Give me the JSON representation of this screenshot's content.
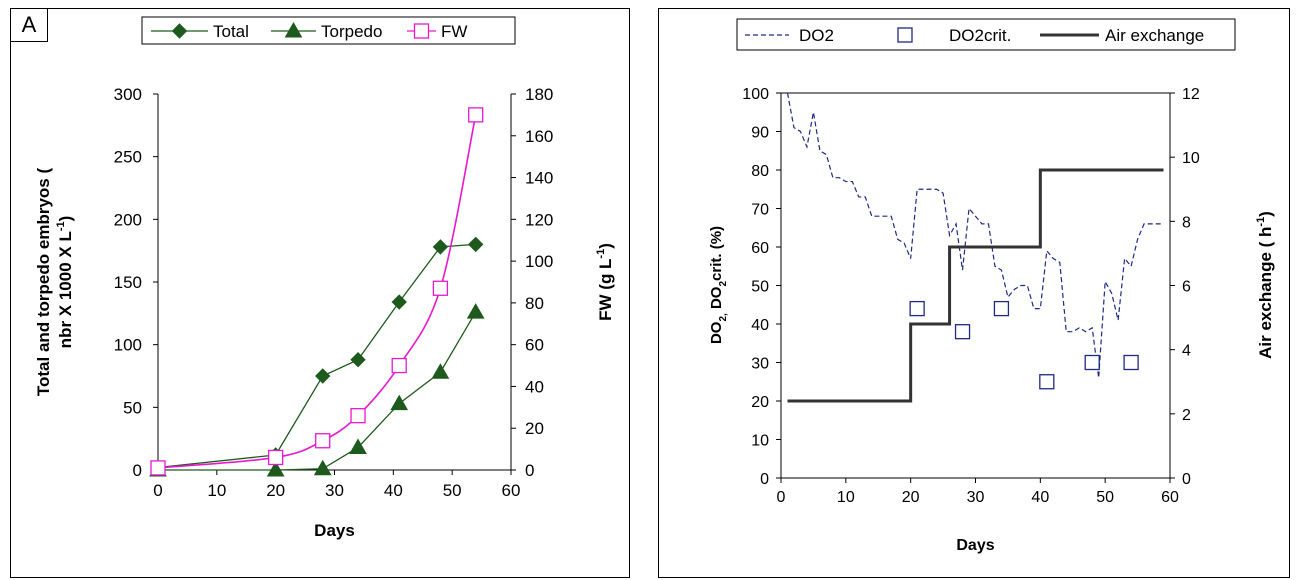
{
  "chart_data": [
    {
      "type": "line",
      "panel_label": "A",
      "xlabel": "Days",
      "ylabel_line1": "Total and torpedo embryos    (",
      "ylabel_line2": "nbr X 1000 X L",
      "ylabel_sup": "-1",
      "ylabel_close": ")",
      "y2label": "FW (g L",
      "y2label_sup": "-1",
      "y2label_close": ")",
      "xlim": [
        0,
        60
      ],
      "xticks": [
        0,
        10,
        20,
        30,
        40,
        50,
        60
      ],
      "ylim": [
        0,
        300
      ],
      "yticks": [
        0,
        50,
        100,
        150,
        200,
        250,
        300
      ],
      "y2lim": [
        0,
        180
      ],
      "y2ticks": [
        0,
        20,
        40,
        60,
        80,
        100,
        120,
        140,
        160,
        180
      ],
      "legend_position": "top",
      "series": [
        {
          "name": "Total",
          "axis": "left",
          "color": "#1e5a1e",
          "marker": "diamond-filled",
          "x": [
            0,
            20,
            28,
            34,
            41,
            48,
            54
          ],
          "y": [
            2,
            12,
            75,
            88,
            134,
            178,
            180
          ]
        },
        {
          "name": "Torpedo",
          "axis": "left",
          "color": "#1e5a1e",
          "marker": "triangle-filled",
          "x": [
            0,
            20,
            28,
            34,
            41,
            48,
            54
          ],
          "y": [
            0,
            0,
            1,
            18,
            53,
            78,
            126
          ]
        },
        {
          "name": "FW",
          "axis": "right",
          "color": "#e619cf",
          "marker": "square-open",
          "x": [
            0,
            20,
            28,
            34,
            41,
            48,
            54
          ],
          "y": [
            1,
            6,
            14,
            26,
            50,
            87,
            170
          ]
        }
      ]
    },
    {
      "type": "line",
      "xlabel": "Days",
      "ylabel_pre": "DO",
      "ylabel_sub1": "2,",
      "ylabel_mid": " DO",
      "ylabel_sub2": "2",
      "ylabel_post": "crit.  (%)",
      "y2label": "Air exchange ( h",
      "y2label_sup": "-1",
      "y2label_close": ")",
      "xlim": [
        0,
        60
      ],
      "xticks": [
        0,
        10,
        20,
        30,
        40,
        50,
        60
      ],
      "ylim": [
        0,
        100
      ],
      "yticks": [
        0,
        10,
        20,
        30,
        40,
        50,
        60,
        70,
        80,
        90,
        100
      ],
      "y2lim": [
        0,
        12
      ],
      "y2ticks": [
        0,
        2,
        4,
        6,
        8,
        10,
        12
      ],
      "legend_position": "top",
      "series": [
        {
          "name": "DO2",
          "axis": "left",
          "color": "#1f2a80",
          "style": "dashed",
          "x": [
            1,
            2,
            3,
            4,
            5,
            6,
            7,
            8,
            9,
            10,
            11,
            12,
            13,
            14,
            15,
            16,
            17,
            18,
            19,
            20,
            21,
            22,
            23,
            24,
            25,
            26,
            27,
            28,
            29,
            30,
            31,
            32,
            33,
            34,
            35,
            36,
            37,
            38,
            39,
            40,
            41,
            42,
            43,
            44,
            45,
            46,
            47,
            48,
            49,
            50,
            51,
            52,
            53,
            54,
            55,
            56,
            57,
            58,
            59
          ],
          "y": [
            100,
            91,
            90,
            86,
            95,
            85,
            84,
            78,
            78,
            77,
            77,
            73,
            73,
            68,
            68,
            68,
            68,
            62,
            61,
            57,
            75,
            75,
            75,
            75,
            74,
            63,
            66,
            54,
            70,
            68,
            66,
            66,
            55,
            54,
            47,
            49,
            50,
            50,
            44,
            44,
            59,
            57,
            56,
            38,
            38,
            39,
            38,
            39,
            26,
            51,
            48,
            41,
            57,
            55,
            62,
            66,
            66,
            66,
            66
          ]
        },
        {
          "name": "DO2crit.",
          "axis": "left",
          "color": "#1f2a80",
          "style": "markers",
          "marker": "square-open",
          "x": [
            21,
            28,
            34,
            41,
            48,
            54
          ],
          "y": [
            44,
            38,
            44,
            25,
            30,
            30
          ]
        },
        {
          "name": "Air exchange",
          "axis": "right",
          "color": "#333333",
          "style": "step",
          "x": [
            1,
            20,
            20,
            26,
            26,
            40,
            40,
            59
          ],
          "y": [
            2.4,
            2.4,
            4.8,
            4.8,
            7.2,
            7.2,
            9.6,
            9.6
          ]
        }
      ]
    }
  ]
}
